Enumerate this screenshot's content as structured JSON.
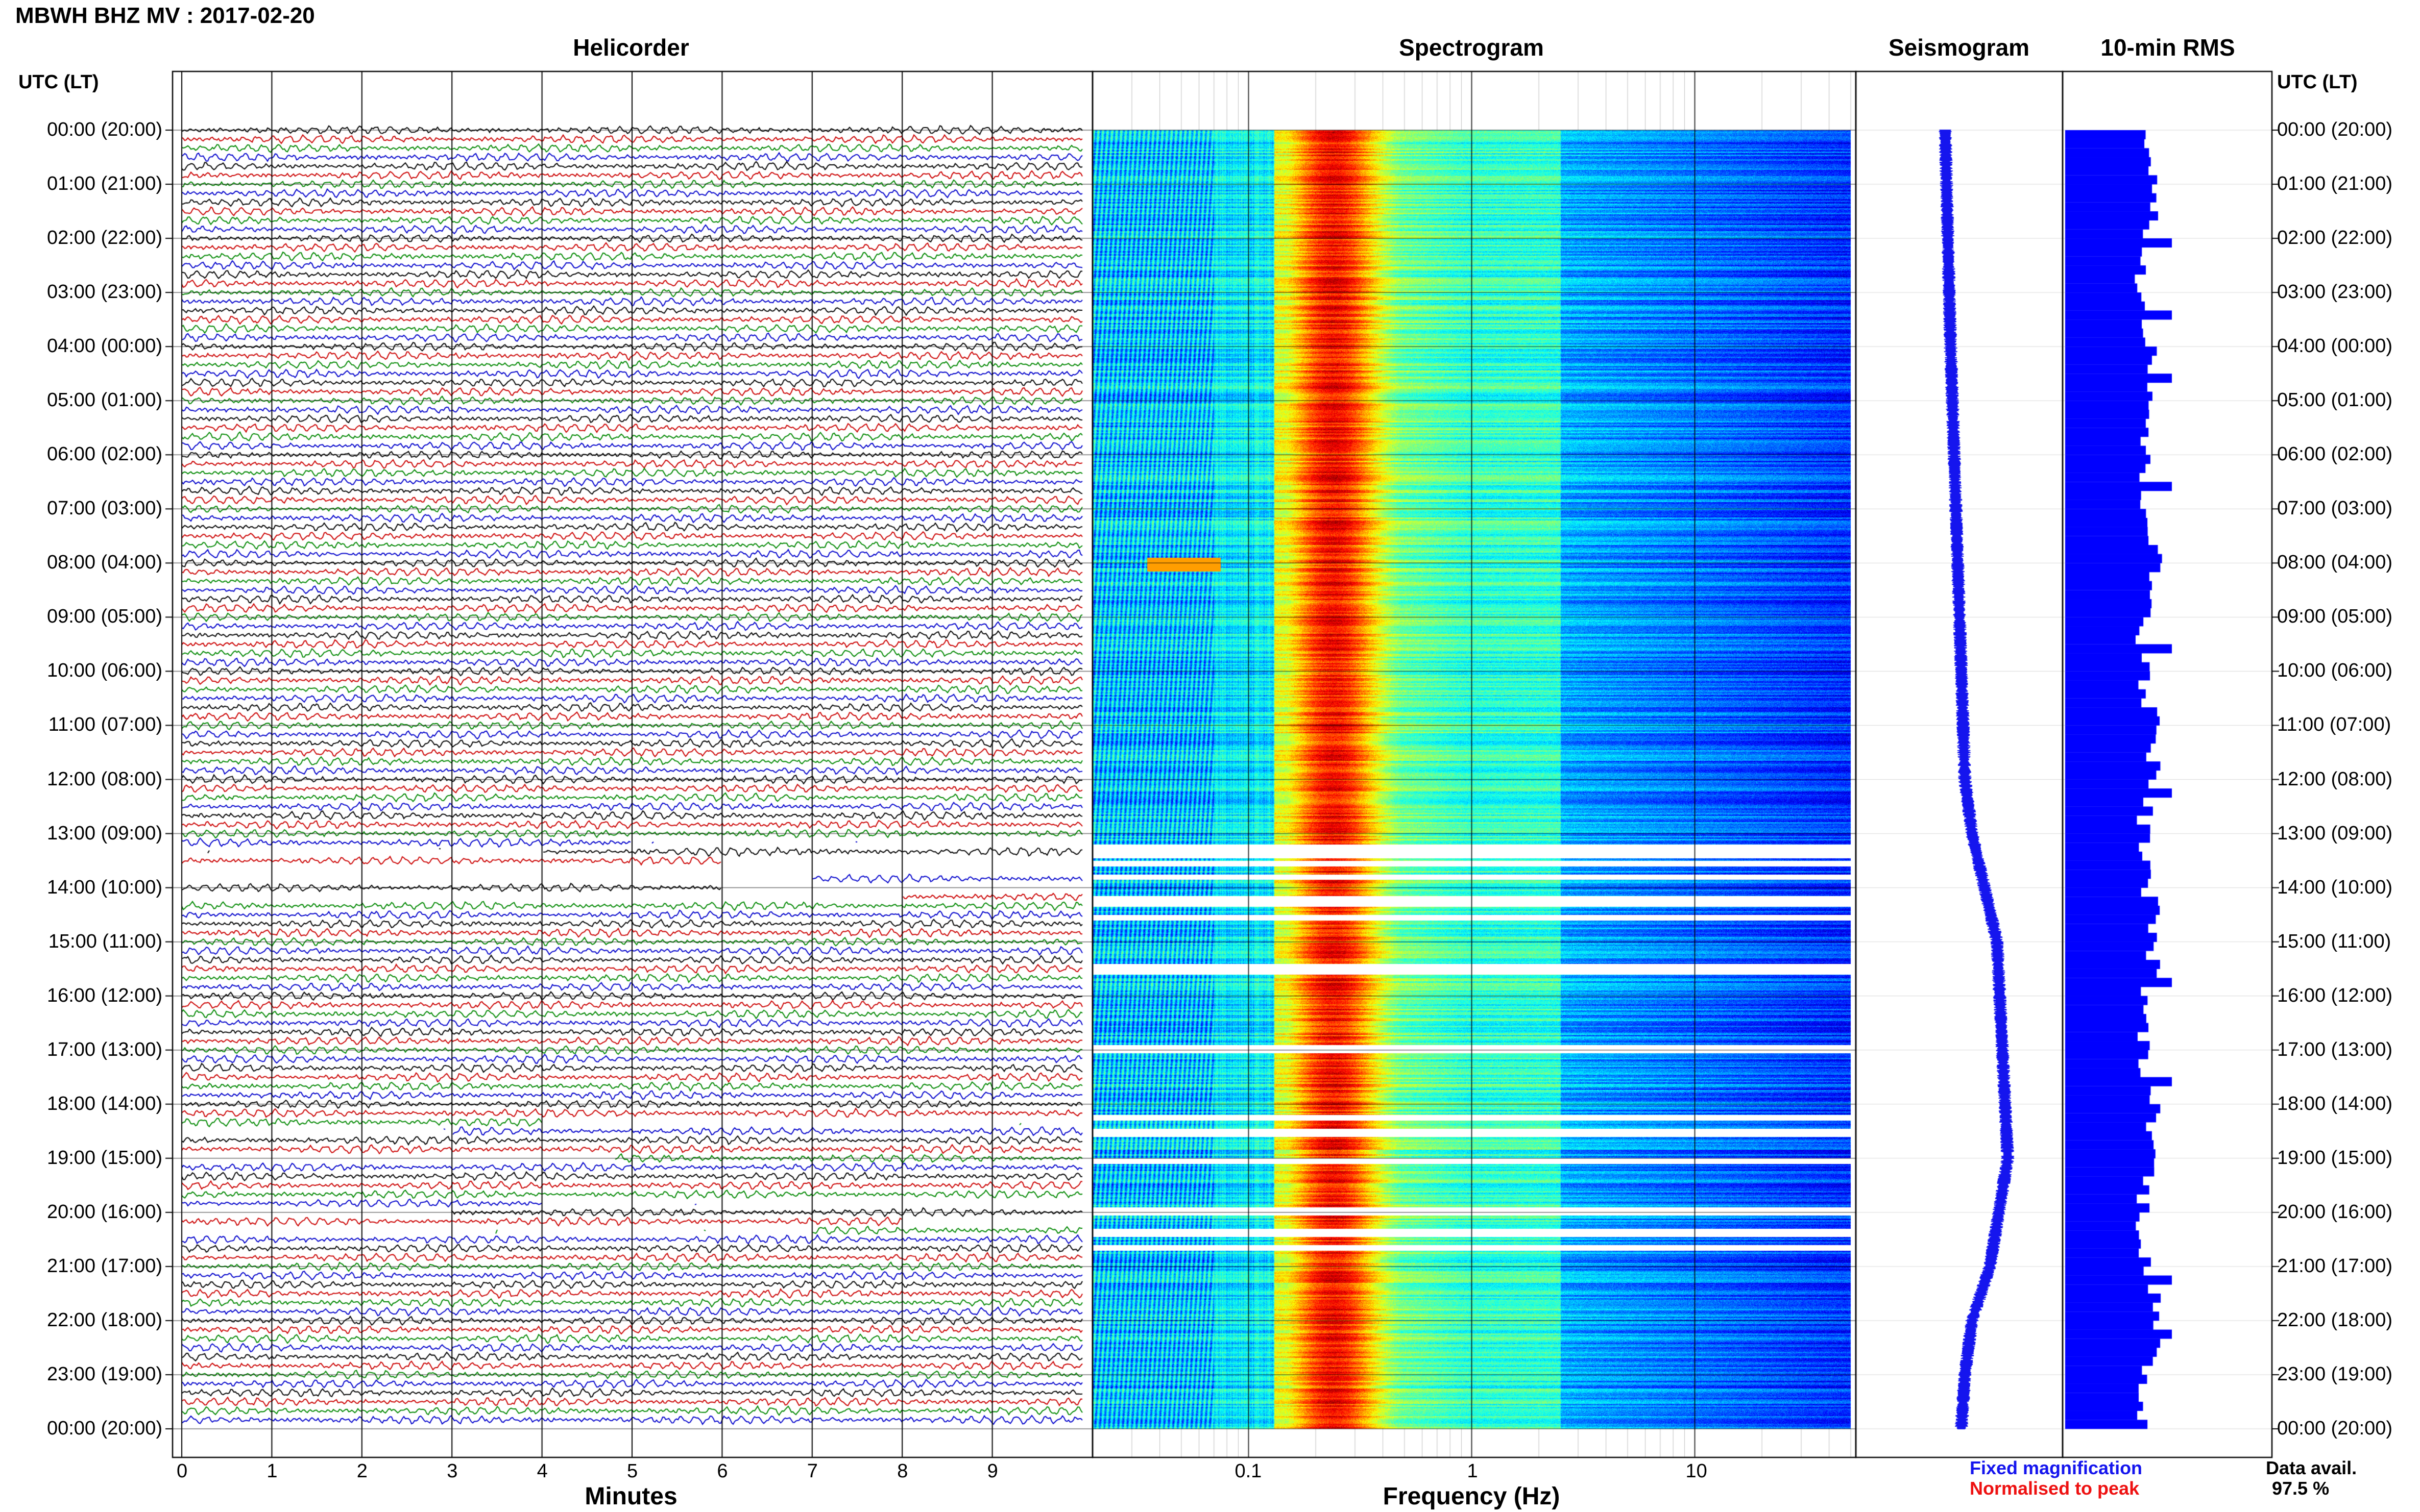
{
  "header": {
    "title": "MBWH BHZ MV : 2017-02-20",
    "utc_label": "UTC (LT)"
  },
  "panels": {
    "helicorder": "Helicorder",
    "spectrogram": "Spectrogram",
    "seismogram": "Seismogram",
    "rms": "10-min RMS"
  },
  "axes": {
    "minutes_label": "Minutes",
    "frequency_label": "Frequency (Hz)"
  },
  "legend": {
    "fixed": "Fixed magnification",
    "normalised": "Normalised to peak",
    "data_avail_label": "Data avail.",
    "data_avail_value": "97.5 %"
  },
  "colors": {
    "trace_cycle": [
      "#000000",
      "#cc0000",
      "#008800",
      "#0000cc"
    ],
    "fixed": "#1515ee",
    "normalised": "#ee1111",
    "rms_bar": "#0000ff",
    "gap": "#ffffff"
  },
  "chart_data": [
    {
      "type": "line",
      "name": "helicorder",
      "x_range_minutes": [
        0,
        10
      ],
      "x_ticks": [
        "0",
        "1",
        "2",
        "3",
        "4",
        "5",
        "6",
        "7",
        "8",
        "9"
      ],
      "rows_per_hour": 6,
      "hours": 24,
      "gaps": [
        [
          13.25,
          13.4
        ],
        [
          13.6,
          13.95
        ],
        [
          14.1,
          14.3
        ],
        [
          18.4,
          18.55
        ],
        [
          19.0,
          19.08
        ],
        [
          19.9,
          20.05
        ],
        [
          20.3,
          20.45
        ]
      ]
    },
    {
      "type": "heatmap",
      "name": "spectrogram",
      "x_scale": "log",
      "x_range_hz": [
        0.02,
        50
      ],
      "x_ticks": [
        "0.1",
        "1",
        "10"
      ],
      "peak_band_hz": [
        0.15,
        0.35
      ],
      "noise_floor_hz": 3,
      "gaps_hours": [
        [
          13.2,
          13.45
        ],
        [
          13.5,
          13.6
        ],
        [
          13.75,
          13.85
        ],
        [
          14.15,
          14.35
        ],
        [
          14.5,
          14.6
        ],
        [
          15.4,
          15.6
        ],
        [
          16.9,
          17.05
        ],
        [
          18.2,
          18.3
        ],
        [
          18.45,
          18.6
        ],
        [
          19.0,
          19.1
        ],
        [
          19.9,
          20.05
        ],
        [
          20.3,
          20.45
        ],
        [
          20.6,
          20.7
        ]
      ]
    },
    {
      "type": "line",
      "name": "seismogram",
      "description_points_hour_offset": [
        [
          0,
          0.0
        ],
        [
          4,
          0.15
        ],
        [
          8,
          0.35
        ],
        [
          12,
          0.55
        ],
        [
          13,
          0.75
        ],
        [
          14,
          1.1
        ],
        [
          15,
          1.45
        ],
        [
          17,
          1.6
        ],
        [
          19,
          1.75
        ],
        [
          20,
          1.5
        ],
        [
          21,
          1.25
        ],
        [
          22,
          0.75
        ],
        [
          23,
          0.55
        ],
        [
          24,
          0.45
        ]
      ]
    },
    {
      "type": "bar",
      "name": "10-min RMS",
      "rows": 144,
      "relative_level_range": [
        0.55,
        0.95
      ]
    }
  ],
  "time_labels": [
    "00:00 (20:00)",
    "01:00 (21:00)",
    "02:00 (22:00)",
    "03:00 (23:00)",
    "04:00 (00:00)",
    "05:00 (01:00)",
    "06:00 (02:00)",
    "07:00 (03:00)",
    "08:00 (04:00)",
    "09:00 (05:00)",
    "10:00 (06:00)",
    "11:00 (07:00)",
    "12:00 (08:00)",
    "13:00 (09:00)",
    "14:00 (10:00)",
    "15:00 (11:00)",
    "16:00 (12:00)",
    "17:00 (13:00)",
    "18:00 (14:00)",
    "19:00 (15:00)",
    "20:00 (16:00)",
    "21:00 (17:00)",
    "22:00 (18:00)",
    "23:00 (19:00)",
    "00:00 (20:00)"
  ]
}
